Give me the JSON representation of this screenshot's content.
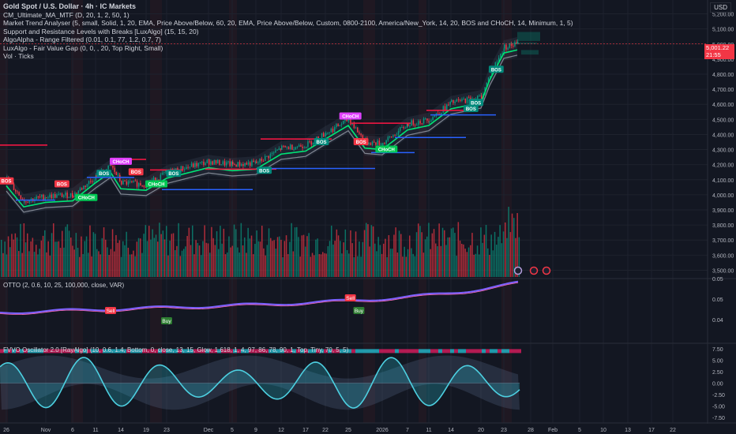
{
  "legend": {
    "symbol": "Gold Spot / U.S. Dollar · 4h · IC Markets",
    "lines": [
      "CM_Ultimate_MA_MTF (D, 20, 1, 2, 50, 1)",
      "Market Trend Analyser (5, small, Solid, 1, 20, EMA, Price Above/Below, 60, 20, EMA, Price Above/Below, Custom, 0800-2100, America/New_York, 14, 20, BOS and CHoCH, 14, Minimum, 1, 5)",
      " Support and Resistance Levels with Breaks [LuxAlgo] (15, 15, 20)",
      "AlgoAlpha - Range Filtered (0.01, 0.1, 77, 1.2, 0.7, 7)",
      "LuxAlgo - Fair Value Gap (0, 0, , 20, Top Right, Small)",
      "Vol · Ticks"
    ]
  },
  "currency": "USD",
  "current_price": {
    "value": "5,001.22",
    "countdown": "21:55"
  },
  "otto_title": "OTTO (2, 0.6, 10, 25, 100,000, close, VAR)",
  "fvvo_title": "FVVO Oscillator 2.0 [RayAlgo] (10, 0.6, 1.4, Bottom, 0, close, 13, 15, Glow, 1.618, 1, 4, 97, 86, 78, 90, 1, Top, Tiny, 70, 5, 5)",
  "colors": {
    "background": "#131722",
    "bull": "#089981",
    "bear": "#f23645",
    "ma_green": "#00e676",
    "support": "#2962ff",
    "resistance": "#ff1744",
    "otto_line": "#7b61ff"
  },
  "chart_data": [
    {
      "type": "candlestick",
      "title": "Gold Spot / U.S. Dollar · 4h · IC Markets",
      "price_axis": {
        "ticks": [
          3500,
          3600,
          3700,
          3800,
          3900,
          4000,
          4100,
          4200,
          4300,
          4400,
          4500,
          4600,
          4700,
          4800,
          4900,
          5000,
          5100,
          5200
        ],
        "tick_labels": [
          "3,500.00",
          "3,600.00",
          "3,700.00",
          "3,800.00",
          "3,900.00",
          "4,000.00",
          "4,100.00",
          "4,200.00",
          "4,300.00",
          "4,400.00",
          "4,500.00",
          "4,600.00",
          "4,700.00",
          "4,800.00",
          "4,900.00",
          "5,000.00",
          "5,100.00",
          "5,200.00"
        ],
        "range": [
          3450,
          5250
        ]
      },
      "time_axis": {
        "labels": [
          "26",
          "Nov",
          "6",
          "11",
          "14",
          "19",
          "23",
          "Dec",
          "5",
          "9",
          "12",
          "17",
          "22",
          "25",
          "2026",
          "7",
          "11",
          "14",
          "20",
          "23",
          "28",
          "Feb",
          "5",
          "10",
          "13",
          "17",
          "22"
        ]
      },
      "price_series": [
        {
          "x": "Oct 26",
          "close": 4100
        },
        {
          "x": "Oct 29",
          "close": 3960
        },
        {
          "x": "Nov",
          "close": 3990
        },
        {
          "x": "Nov 6",
          "close": 4000
        },
        {
          "x": "Nov 11",
          "close": 4120
        },
        {
          "x": "Nov 13",
          "close": 4190
        },
        {
          "x": "Nov 14",
          "close": 4080
        },
        {
          "x": "Nov 19",
          "close": 4070
        },
        {
          "x": "Nov 23",
          "close": 4150
        },
        {
          "x": "Dec",
          "close": 4220
        },
        {
          "x": "Dec 5",
          "close": 4200
        },
        {
          "x": "Dec 9",
          "close": 4210
        },
        {
          "x": "Dec 12",
          "close": 4310
        },
        {
          "x": "Dec 17",
          "close": 4330
        },
        {
          "x": "Dec 22",
          "close": 4410
        },
        {
          "x": "Dec 25",
          "close": 4500
        },
        {
          "x": "Dec 29",
          "close": 4350
        },
        {
          "x": "2026",
          "close": 4340
        },
        {
          "x": "Jan 7",
          "close": 4470
        },
        {
          "x": "Jan 11",
          "close": 4500
        },
        {
          "x": "Jan 14",
          "close": 4610
        },
        {
          "x": "Jan 20",
          "close": 4650
        },
        {
          "x": "Jan 21",
          "close": 4800
        },
        {
          "x": "Jan 23",
          "close": 4980
        },
        {
          "x": "Jan 25",
          "close": 5001
        }
      ],
      "annotations": [
        {
          "label": "BOS",
          "x": "Oct 26",
          "price": 4090,
          "kind": "bear"
        },
        {
          "label": "BOS",
          "x": "Nov 4",
          "price": 4070,
          "kind": "bear"
        },
        {
          "label": "CHoCH",
          "x": "Nov 9",
          "price": 3980,
          "kind": "bull"
        },
        {
          "label": "BOS",
          "x": "Nov 12",
          "price": 4140,
          "kind": "bull"
        },
        {
          "label": "CHoCH",
          "x": "Nov 14",
          "price": 4220,
          "kind": "choch"
        },
        {
          "label": "BOS",
          "x": "Nov 17",
          "price": 4150,
          "kind": "bear"
        },
        {
          "label": "CHoCH",
          "x": "Nov 21",
          "price": 4070,
          "kind": "bull"
        },
        {
          "label": "BOS",
          "x": "Nov 26",
          "price": 4140,
          "kind": "bull"
        },
        {
          "label": "BOS",
          "x": "Dec 10",
          "price": 4160,
          "kind": "bull"
        },
        {
          "label": "BOS",
          "x": "Dec 21",
          "price": 4350,
          "kind": "bull"
        },
        {
          "label": "CHoCH",
          "x": "Dec 26",
          "price": 4520,
          "kind": "choch"
        },
        {
          "label": "BOS",
          "x": "Dec 31",
          "price": 4350,
          "kind": "bear"
        },
        {
          "label": "CHoCH",
          "x": "Jan 2",
          "price": 4300,
          "kind": "bull"
        },
        {
          "label": "BOS",
          "x": "Jan 18",
          "price": 4570,
          "kind": "bull"
        },
        {
          "label": "BOS",
          "x": "Jan 19",
          "price": 4610,
          "kind": "bull"
        },
        {
          "label": "BOS",
          "x": "Jan 22",
          "price": 4830,
          "kind": "bull"
        }
      ]
    },
    {
      "type": "line",
      "title": "OTTO (2, 0.6, 10, 25, 100,000, close, VAR)",
      "axis_labels": [
        "0.05",
        "0.05",
        "0.04"
      ],
      "signals": [
        {
          "label": "Sell",
          "x": "Nov 13"
        },
        {
          "label": "Buy",
          "x": "Nov 23"
        },
        {
          "label": "Sell",
          "x": "Dec 26"
        },
        {
          "label": "Buy",
          "x": "Dec 30"
        }
      ]
    },
    {
      "type": "area",
      "title": "FVVO Oscillator 2.0 [RayAlgo] (10, 0.6, 1.4, Bottom, 0, close, 13, 15, Glow, 1.618, 1, 4, 97, 86, 78, 90, 1, Top, Tiny, 70, 5, 5)",
      "axis_labels": [
        "7.50",
        "5.00",
        "2.50",
        "0.00",
        "-2.50",
        "-5.00",
        "-7.50"
      ],
      "ylim": [
        -8.5,
        8.5
      ]
    }
  ]
}
